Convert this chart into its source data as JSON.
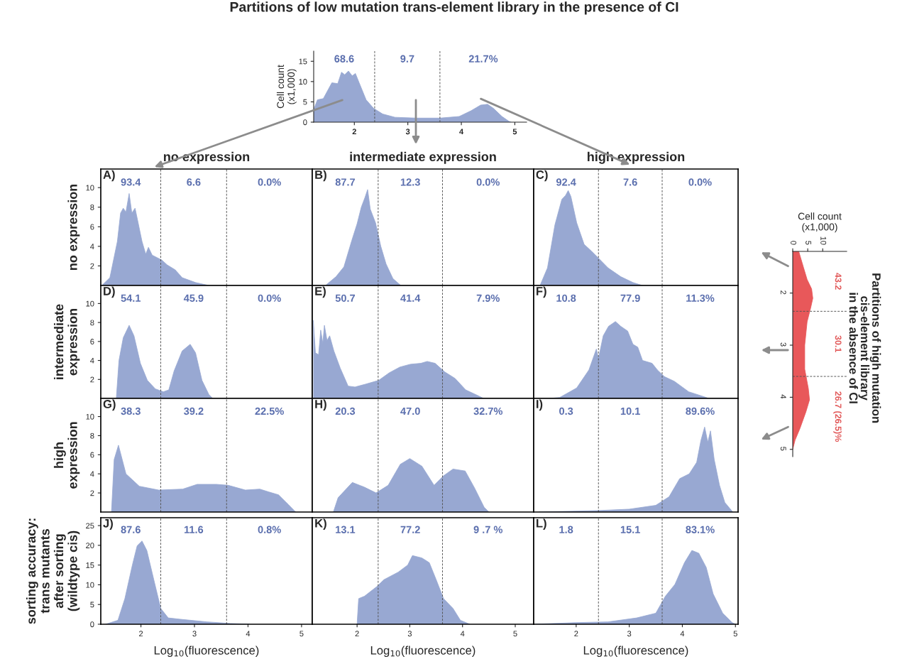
{
  "chart_data": [
    {
      "type": "area",
      "title": "Partitions of low mutation trans-element library in the presence of CI",
      "ylabel": "Cell count\n(x1,000)",
      "color": "#98a8d2",
      "x": [
        1.24,
        1.31,
        1.42,
        1.58,
        1.69,
        1.76,
        1.82,
        1.89,
        1.96,
        2.02,
        2.09,
        2.22,
        2.36,
        2.53,
        2.76,
        3.16,
        3.6,
        3.96,
        4.18,
        4.36,
        4.49,
        4.6,
        4.76,
        4.89,
        4.93
      ],
      "values": [
        3.1,
        5.5,
        5.8,
        9.7,
        9.5,
        12.3,
        11.7,
        12.6,
        11.4,
        12.0,
        9.7,
        5.5,
        3.4,
        2.0,
        1.2,
        1.0,
        1.0,
        1.4,
        2.8,
        4.2,
        4.4,
        3.4,
        1.4,
        0.2,
        0
      ],
      "xlim": [
        1.24,
        5.22
      ],
      "ylim": [
        0,
        17.5
      ],
      "xticks": [
        2,
        3,
        4,
        5
      ],
      "yticks": [
        0,
        5,
        10,
        15
      ],
      "ref_lines": [
        {
          "axis": "x",
          "value": 2.38,
          "line_style": "dashed"
        },
        {
          "axis": "x",
          "value": 3.6,
          "line_style": "dashed"
        }
      ],
      "annotations": [
        "68.6",
        "9.7",
        "21.7%"
      ]
    },
    {
      "type": "area",
      "title": "no expression",
      "ylabel": "no expression",
      "color": "#98a8d2",
      "x": [
        1.27,
        1.42,
        1.56,
        1.62,
        1.67,
        1.72,
        1.78,
        1.83,
        1.89,
        1.94,
        2.02,
        2.09,
        2.14,
        2.21,
        2.39,
        2.49,
        2.64,
        2.77,
        3.02,
        3.27
      ],
      "values": [
        0,
        0.8,
        4.5,
        7.4,
        7.9,
        7.5,
        9.4,
        7.4,
        7.9,
        6.6,
        4.5,
        3.2,
        3.9,
        3.1,
        2.6,
        2.1,
        1.6,
        0.8,
        0.3,
        0
      ],
      "xlim": [
        1.25,
        5.2
      ],
      "ylim": [
        0,
        11.9
      ],
      "yticks": [
        2,
        4,
        6,
        8,
        10
      ],
      "tick_labels": "y",
      "ref_lines": [
        {
          "axis": "x",
          "value": 2.37,
          "line_style": "dashed"
        },
        {
          "axis": "x",
          "value": 3.6,
          "line_style": "dashed"
        }
      ],
      "annotations": [
        "A)",
        "93.4",
        "6.6",
        "0.0%"
      ]
    },
    {
      "type": "area",
      "title": "intermediate expression",
      "color": "#98a8d2",
      "x": [
        1.4,
        1.6,
        1.75,
        1.9,
        2.0,
        2.08,
        2.15,
        2.2,
        2.25,
        2.35,
        2.45,
        2.55,
        2.68,
        2.83
      ],
      "values": [
        0,
        0.9,
        1.9,
        4.6,
        6.3,
        8.0,
        9.0,
        9.8,
        7.8,
        6.4,
        4.0,
        2.2,
        0.7,
        0
      ],
      "xlim": [
        1.15,
        5.35
      ],
      "ylim": [
        0,
        11.9
      ],
      "tick_labels": false,
      "ref_lines": [
        {
          "axis": "x",
          "value": 2.4,
          "line_style": "dashed"
        },
        {
          "axis": "x",
          "value": 3.62,
          "line_style": "dashed"
        }
      ],
      "annotations": [
        "B)",
        "87.7",
        "12.3",
        "0.0%"
      ]
    },
    {
      "type": "area",
      "title": "high expression",
      "color": "#98a8d2",
      "x": [
        1.32,
        1.46,
        1.6,
        1.73,
        1.8,
        1.85,
        1.9,
        2.01,
        2.15,
        2.29,
        2.4,
        2.6,
        2.84,
        3.07,
        3.25
      ],
      "values": [
        0,
        1.8,
        6.2,
        8.8,
        9.2,
        9.7,
        9.1,
        6.4,
        4.2,
        3.5,
        2.9,
        1.8,
        0.9,
        0.3,
        0
      ],
      "xlim": [
        1.2,
        5.05
      ],
      "ylim": [
        0,
        11.9
      ],
      "tick_labels": false,
      "ref_lines": [
        {
          "axis": "x",
          "value": 2.42,
          "line_style": "dashed"
        },
        {
          "axis": "x",
          "value": 3.62,
          "line_style": "dashed"
        }
      ],
      "annotations": [
        "C)",
        "92.4",
        "7.6",
        "0.0%"
      ]
    },
    {
      "type": "area",
      "ylabel": "intermediate\nexpression",
      "color": "#98a8d2",
      "x": [
        1.54,
        1.59,
        1.67,
        1.78,
        1.87,
        1.99,
        2.12,
        2.27,
        2.42,
        2.52,
        2.62,
        2.77,
        2.92,
        3.02,
        3.14,
        3.27,
        3.34
      ],
      "values": [
        0,
        4.0,
        6.4,
        7.7,
        6.6,
        3.7,
        1.9,
        1.0,
        0.7,
        0.9,
        2.9,
        5.0,
        5.7,
        4.8,
        1.9,
        0.4,
        0
      ],
      "xlim": [
        1.25,
        5.2
      ],
      "ylim": [
        0,
        11.9
      ],
      "yticks": [
        2,
        4,
        6,
        8,
        10
      ],
      "tick_labels": "y",
      "ref_lines": [
        {
          "axis": "x",
          "value": 2.37,
          "line_style": "dashed"
        },
        {
          "axis": "x",
          "value": 3.6,
          "line_style": "dashed"
        }
      ],
      "annotations": [
        "D)",
        "54.1",
        "45.9",
        "0.0%"
      ]
    },
    {
      "type": "area",
      "color": "#98a8d2",
      "x": [
        1.17,
        1.21,
        1.27,
        1.31,
        1.35,
        1.38,
        1.43,
        1.48,
        1.56,
        1.68,
        1.83,
        1.96,
        2.16,
        2.41,
        2.61,
        2.81,
        3.01,
        3.21,
        3.33,
        3.48,
        3.66,
        3.86,
        4.06,
        4.29,
        4.4
      ],
      "values": [
        8.2,
        4.8,
        4.6,
        7.2,
        5.8,
        7.7,
        6.1,
        6.6,
        5.0,
        3.2,
        1.3,
        1.2,
        1.5,
        1.9,
        2.7,
        3.3,
        3.6,
        3.7,
        3.9,
        3.7,
        2.8,
        2.1,
        0.9,
        0.3,
        0
      ],
      "xlim": [
        1.15,
        5.35
      ],
      "ylim": [
        0,
        11.9
      ],
      "tick_labels": false,
      "ref_lines": [
        {
          "axis": "x",
          "value": 2.4,
          "line_style": "dashed"
        },
        {
          "axis": "x",
          "value": 3.62,
          "line_style": "dashed"
        }
      ],
      "annotations": [
        "E)",
        "50.7",
        "41.4",
        "7.9%"
      ]
    },
    {
      "type": "area",
      "color": "#98a8d2",
      "x": [
        1.5,
        1.69,
        2.01,
        2.24,
        2.38,
        2.42,
        2.51,
        2.61,
        2.74,
        2.84,
        2.97,
        3.07,
        3.16,
        3.25,
        3.43,
        3.53,
        3.66,
        3.85,
        4.12,
        4.45,
        4.49
      ],
      "values": [
        0,
        0.1,
        1.1,
        3.0,
        5.2,
        4.2,
        6.6,
        7.6,
        8.1,
        7.6,
        7.1,
        5.7,
        5.4,
        4.0,
        3.7,
        3.0,
        2.3,
        1.8,
        0.7,
        0.1,
        0
      ],
      "xlim": [
        1.2,
        5.05
      ],
      "ylim": [
        0,
        11.9
      ],
      "tick_labels": false,
      "ref_lines": [
        {
          "axis": "x",
          "value": 2.42,
          "line_style": "dashed"
        },
        {
          "axis": "x",
          "value": 3.62,
          "line_style": "dashed"
        }
      ],
      "annotations": [
        "F)",
        "10.8",
        "77.9",
        "11.3%"
      ]
    },
    {
      "type": "area",
      "ylabel": "high\nexpression",
      "color": "#98a8d2",
      "x": [
        1.45,
        1.5,
        1.58,
        1.72,
        1.97,
        2.33,
        2.78,
        3.05,
        3.41,
        3.63,
        3.95,
        4.22,
        4.39,
        4.57,
        4.75,
        4.89
      ],
      "values": [
        0,
        5.5,
        7.0,
        4.0,
        2.7,
        2.3,
        2.4,
        2.9,
        2.9,
        2.8,
        2.3,
        2.4,
        2.1,
        1.8,
        0.8,
        0
      ],
      "xlim": [
        1.25,
        5.2
      ],
      "ylim": [
        0,
        11.9
      ],
      "yticks": [
        2,
        4,
        6,
        8,
        10
      ],
      "tick_labels": "y",
      "ref_lines": [
        {
          "axis": "x",
          "value": 2.37,
          "line_style": "dashed"
        },
        {
          "axis": "x",
          "value": 3.6,
          "line_style": "dashed"
        }
      ],
      "annotations": [
        "G)",
        "38.3",
        "39.2",
        "22.5%"
      ]
    },
    {
      "type": "area",
      "color": "#98a8d2",
      "x": [
        1.55,
        1.64,
        1.91,
        2.14,
        2.36,
        2.59,
        2.82,
        3.0,
        3.23,
        3.46,
        3.64,
        3.82,
        4.05,
        4.23,
        4.41,
        4.5
      ],
      "values": [
        0,
        1.5,
        3.1,
        2.6,
        2.0,
        2.8,
        5.0,
        5.6,
        4.8,
        2.8,
        3.8,
        4.5,
        4.3,
        2.5,
        0.5,
        0
      ],
      "xlim": [
        1.15,
        5.35
      ],
      "ylim": [
        0,
        11.9
      ],
      "tick_labels": false,
      "ref_lines": [
        {
          "axis": "x",
          "value": 2.4,
          "line_style": "dashed"
        },
        {
          "axis": "x",
          "value": 3.62,
          "line_style": "dashed"
        }
      ],
      "annotations": [
        "H)",
        "20.3",
        "47.0",
        "32.7%"
      ]
    },
    {
      "type": "area",
      "color": "#98a8d2",
      "x": [
        1.3,
        2.4,
        3.0,
        3.5,
        3.75,
        3.95,
        4.13,
        4.27,
        4.35,
        4.42,
        4.48,
        4.53,
        4.6,
        4.7,
        4.8,
        4.95
      ],
      "values": [
        0,
        0.15,
        0.3,
        0.7,
        1.6,
        3.5,
        4.0,
        5.2,
        7.5,
        8.9,
        7.3,
        8.5,
        5.5,
        2.8,
        1.0,
        0
      ],
      "xlim": [
        1.2,
        5.05
      ],
      "ylim": [
        0,
        11.9
      ],
      "tick_labels": false,
      "ref_lines": [
        {
          "axis": "x",
          "value": 2.42,
          "line_style": "dashed"
        },
        {
          "axis": "x",
          "value": 3.62,
          "line_style": "dashed"
        }
      ],
      "annotations": [
        "I)",
        "0.3",
        "10.1",
        "89.6%"
      ]
    },
    {
      "type": "area",
      "ylabel": "sorting accuracy:\ntrans mutants\nafter sorting\n(wildtype cis)",
      "xlabel": "Log$_{10}$(fluorescence)",
      "color": "#98a8d2",
      "x": [
        1.34,
        1.57,
        1.7,
        1.84,
        1.93,
        2.02,
        2.11,
        2.24,
        2.37,
        2.51,
        2.78,
        3.23,
        3.67,
        4.03
      ],
      "values": [
        0,
        1.0,
        6.5,
        15.0,
        19.9,
        21.1,
        18.7,
        11.3,
        4.0,
        1.6,
        1.2,
        0.6,
        0.2,
        0
      ],
      "xlim": [
        1.25,
        5.2
      ],
      "ylim": [
        0,
        27
      ],
      "xticks": [
        2,
        3,
        4,
        5
      ],
      "yticks": [
        0,
        5,
        10,
        15,
        20,
        25
      ],
      "ref_lines": [
        {
          "axis": "x",
          "value": 2.37,
          "line_style": "dashed"
        },
        {
          "axis": "x",
          "value": 3.6,
          "line_style": "dashed"
        }
      ],
      "annotations": [
        "J)",
        "87.6",
        "11.6",
        "0.8%"
      ]
    },
    {
      "type": "area",
      "xlabel": "Log$_{10}$(fluorescence)",
      "color": "#98a8d2",
      "x": [
        2.0,
        2.03,
        2.14,
        2.37,
        2.51,
        2.78,
        2.96,
        3.05,
        3.23,
        3.37,
        3.5,
        3.64,
        3.82,
        3.96,
        4.14
      ],
      "values": [
        0,
        6.5,
        7.1,
        9.5,
        11.3,
        13.2,
        15.0,
        17.4,
        16.8,
        15.6,
        11.3,
        6.5,
        4.0,
        1.0,
        0
      ],
      "xlim": [
        1.15,
        5.35
      ],
      "ylim": [
        0,
        27
      ],
      "xticks": [
        2,
        3,
        4,
        5
      ],
      "tick_labels": "x",
      "ref_lines": [
        {
          "axis": "x",
          "value": 2.4,
          "line_style": "dashed"
        },
        {
          "axis": "x",
          "value": 3.62,
          "line_style": "dashed"
        }
      ],
      "annotations": [
        "K)",
        "13.1",
        "77.2",
        "9 .7 %"
      ]
    },
    {
      "type": "area",
      "xlabel": "Log$_{10}$(fluorescence)",
      "color": "#98a8d2",
      "x": [
        1.2,
        1.98,
        2.6,
        3.14,
        3.5,
        3.68,
        3.86,
        4.04,
        4.18,
        4.31,
        4.45,
        4.58,
        4.76,
        4.94,
        5.0
      ],
      "values": [
        0,
        0.4,
        0.6,
        1.6,
        2.8,
        7.1,
        10.1,
        15.6,
        18.7,
        18.0,
        14.4,
        7.7,
        2.8,
        0.4,
        0
      ],
      "xlim": [
        1.2,
        5.05
      ],
      "ylim": [
        0,
        27
      ],
      "xticks": [
        2,
        3,
        4,
        5
      ],
      "tick_labels": "x",
      "ref_lines": [
        {
          "axis": "x",
          "value": 2.42,
          "line_style": "dashed"
        },
        {
          "axis": "x",
          "value": 3.62,
          "line_style": "dashed"
        }
      ],
      "annotations": [
        "L)",
        "1.8",
        "15.1",
        "83.1%"
      ]
    },
    {
      "type": "area",
      "orientation": "horizontal",
      "title": "Partitions of high mutation\ncis-element library\nin the absence of CI",
      "xlabel": "Cell count\n(x1,000)",
      "color": "#e8585a",
      "x": [
        1.2,
        1.51,
        1.74,
        1.92,
        2.1,
        2.28,
        2.55,
        3.0,
        3.46,
        3.83,
        4.05,
        4.28,
        4.6,
        4.82,
        5.0
      ],
      "values": [
        2.0,
        3.6,
        4.8,
        6.3,
        6.7,
        6.0,
        4.8,
        4.0,
        4.0,
        5.2,
        5.6,
        4.4,
        2.4,
        0.8,
        0
      ],
      "xlim": [
        0,
        18
      ],
      "ylim": [
        5.14,
        1.2
      ],
      "xticks": [
        0,
        5,
        10
      ],
      "yticks": [
        2,
        3,
        4,
        5
      ],
      "ref_lines": [
        {
          "axis": "y",
          "value": 2.35,
          "line_style": "dashed"
        },
        {
          "axis": "y",
          "value": 3.6,
          "line_style": "dashed"
        }
      ],
      "annotations": [
        "43.2",
        "30.1",
        "26.7 (26.5)%"
      ]
    }
  ]
}
